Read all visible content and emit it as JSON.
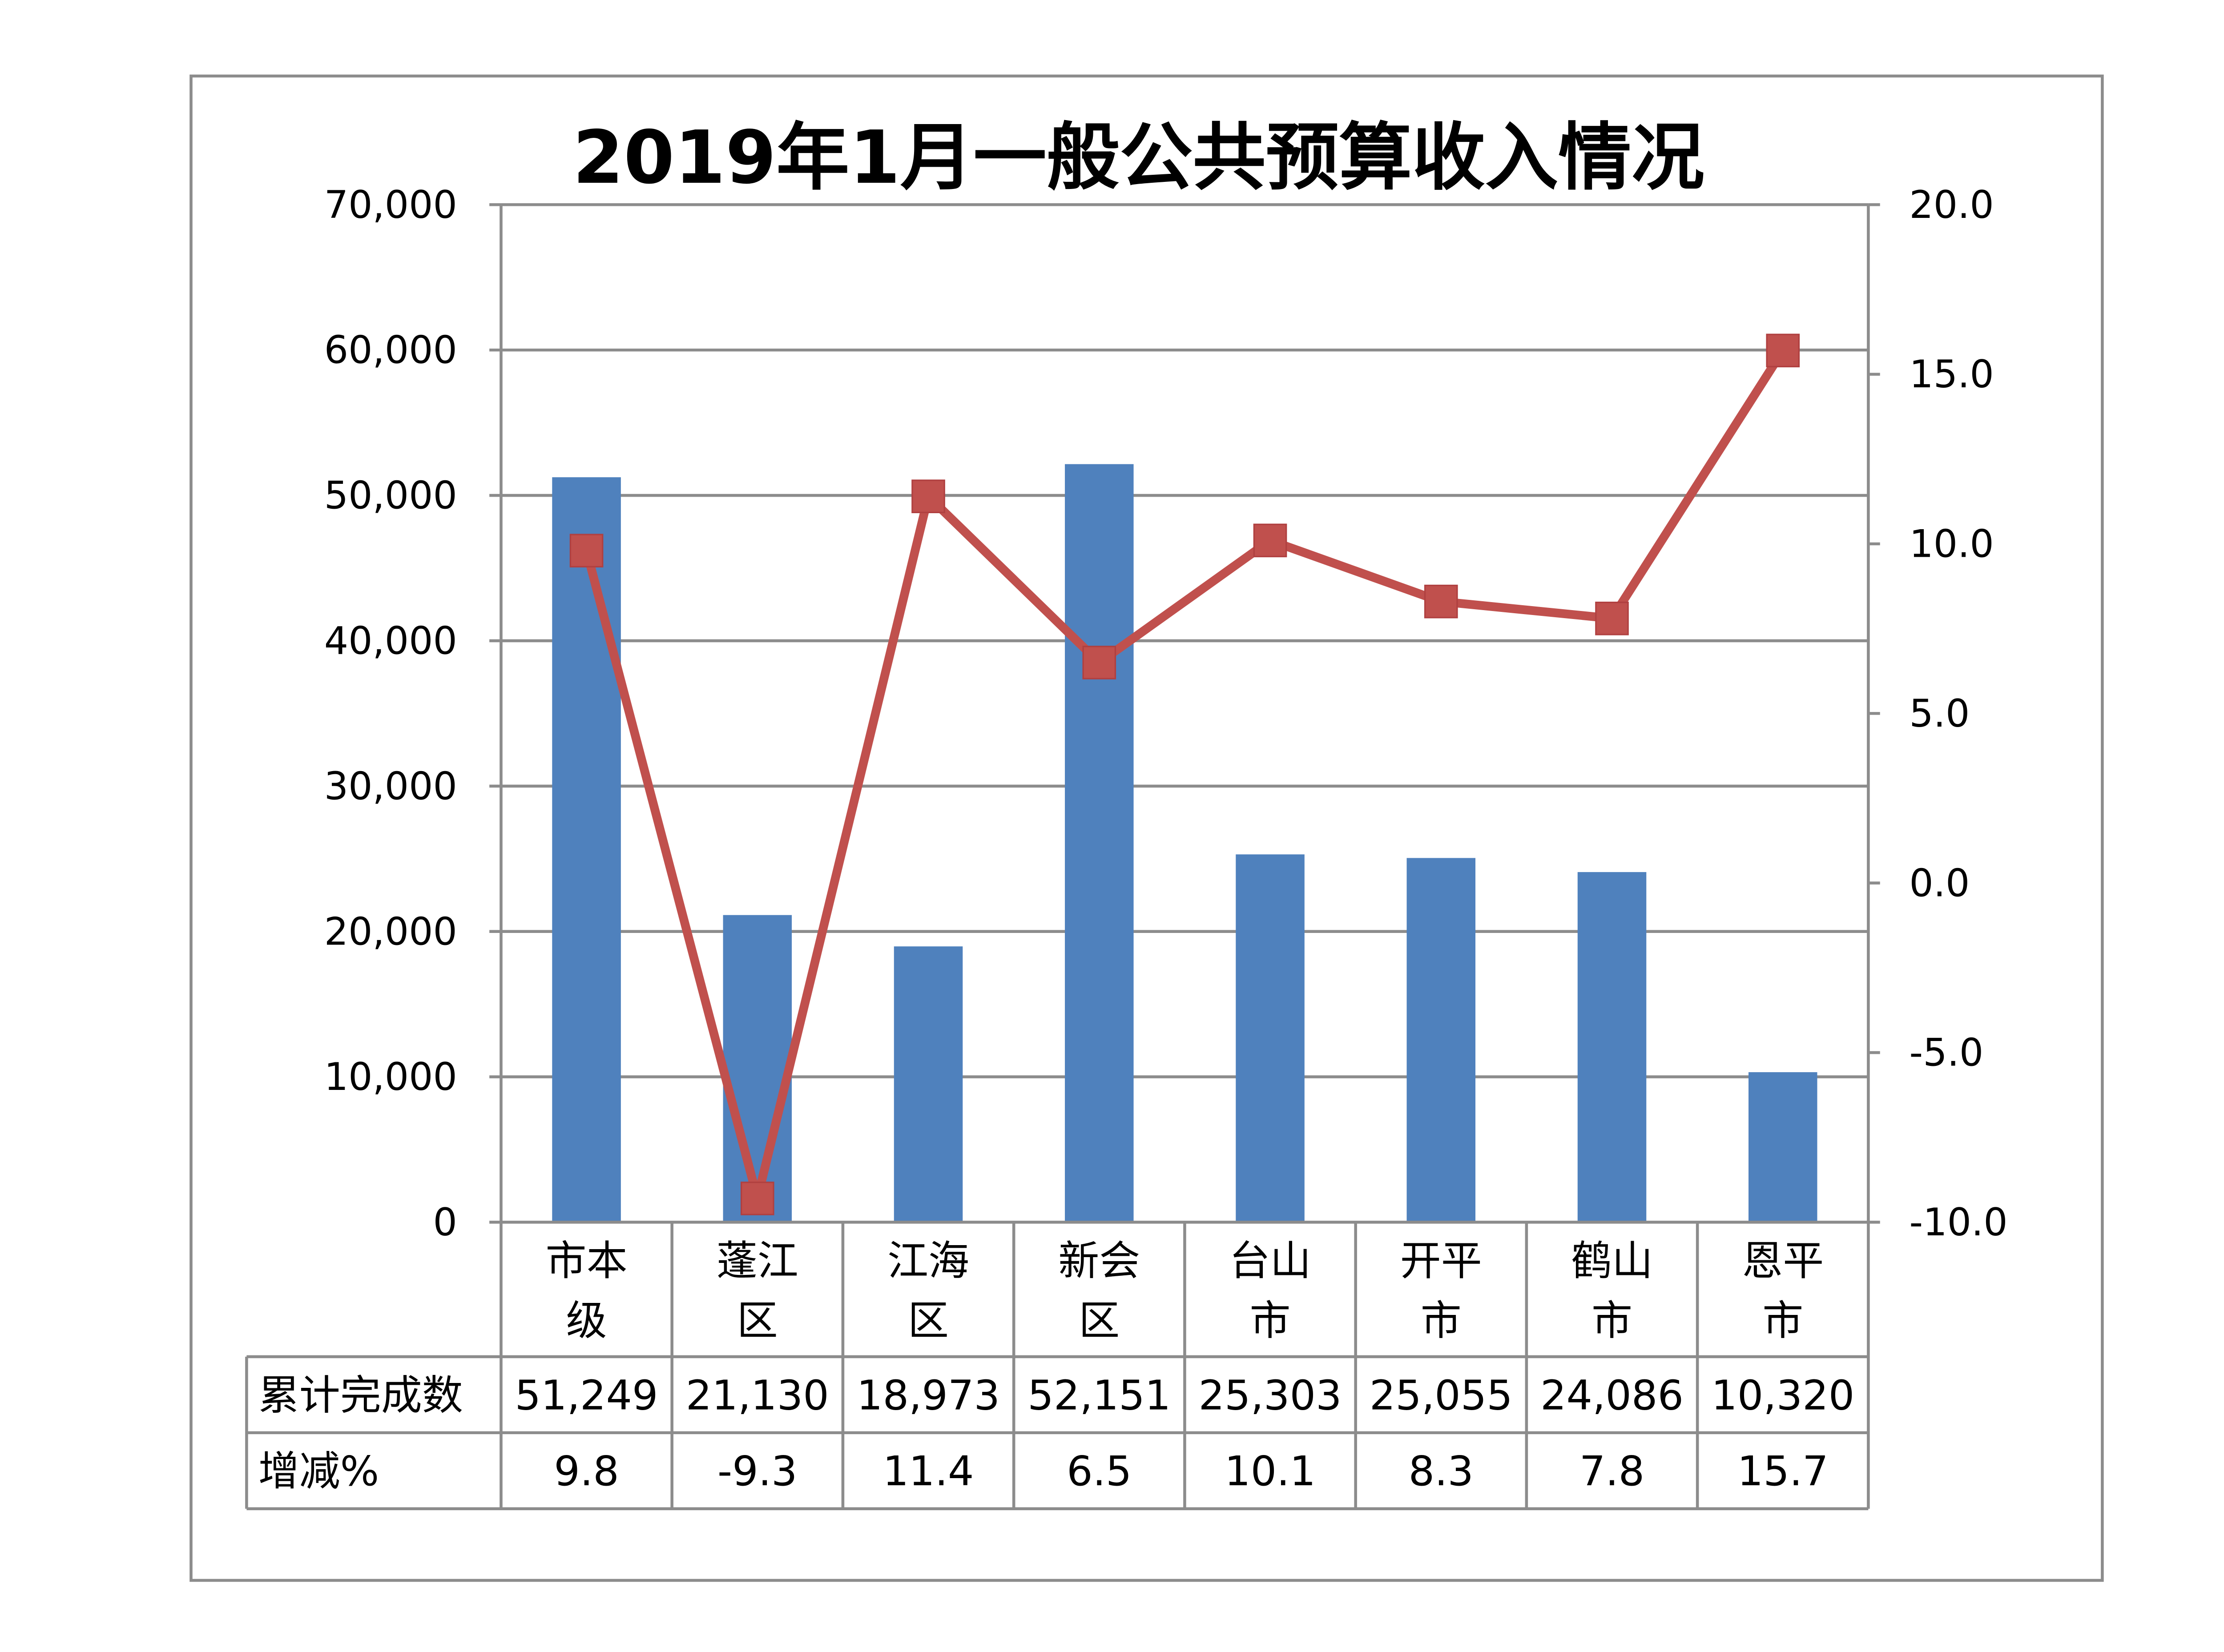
{
  "chart_data": {
    "type": "bar+line",
    "title": "2019年1月一般公共预算收入情况",
    "categories": [
      "市本级",
      "蓬江区",
      "江海区",
      "新会区",
      "台山市",
      "开平市",
      "鹤山市",
      "恩平市"
    ],
    "series": [
      {
        "name": "累计完成数",
        "type": "bar",
        "axis": "left",
        "color": "#4F81BD",
        "values": [
          51249,
          21130,
          18973,
          52151,
          25303,
          25055,
          24086,
          10320
        ],
        "labels": [
          "51,249",
          "21,130",
          "18,973",
          "52,151",
          "25,303",
          "25,055",
          "24,086",
          "10,320"
        ]
      },
      {
        "name": "增减%",
        "type": "line",
        "axis": "right",
        "color": "#C0504D",
        "values": [
          9.8,
          -9.3,
          11.4,
          6.5,
          10.1,
          8.3,
          7.8,
          15.7
        ],
        "labels": [
          "9.8",
          "-9.3",
          "11.4",
          "6.5",
          "10.1",
          "8.3",
          "7.8",
          "15.7"
        ]
      }
    ],
    "y_left": {
      "lim": [
        0,
        70000
      ],
      "ticks": [
        "0",
        "10,000",
        "20,000",
        "30,000",
        "40,000",
        "50,000",
        "60,000",
        "70,000"
      ]
    },
    "y_right": {
      "lim": [
        -10,
        20
      ],
      "ticks": [
        "-10.0",
        "-5.0",
        "0.0",
        "5.0",
        "10.0",
        "15.0",
        "20.0"
      ]
    },
    "grid": true,
    "legend": "data-table"
  }
}
